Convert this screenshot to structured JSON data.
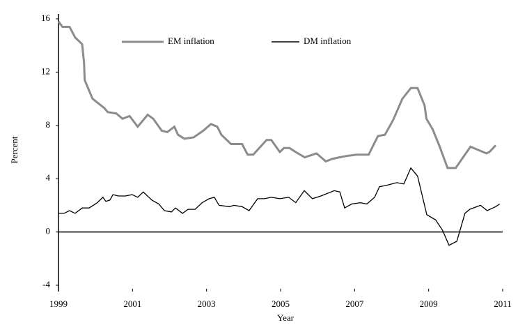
{
  "chart_data": {
    "type": "line",
    "x_label": "Year",
    "y_label": "Percent",
    "xlim": [
      1999,
      2011
    ],
    "xticks": [
      1999,
      2001,
      2003,
      2005,
      2007,
      2009,
      2011
    ],
    "ylim": [
      -4,
      16
    ],
    "yticks": [
      -4,
      0,
      4,
      8,
      12,
      16
    ],
    "legend": "top",
    "series": [
      {
        "name": "EM inflation",
        "color": "#8c8c8c",
        "x": [
          1999.0,
          1999.11,
          1999.3,
          1999.45,
          1999.64,
          1999.69,
          1999.71,
          1999.92,
          2000.24,
          2000.33,
          2000.56,
          2000.73,
          2000.92,
          2001.14,
          2001.41,
          2001.56,
          2001.79,
          2001.94,
          2002.13,
          2002.23,
          2002.4,
          2002.65,
          2002.91,
          2003.12,
          2003.29,
          2003.4,
          2003.66,
          2003.96,
          2004.11,
          2004.26,
          2004.62,
          2004.75,
          2004.98,
          2005.09,
          2005.24,
          2005.41,
          2005.65,
          2005.97,
          2006.22,
          2006.41,
          2006.59,
          2006.78,
          2007.05,
          2007.38,
          2007.63,
          2007.82,
          2008.04,
          2008.29,
          2008.52,
          2008.7,
          2008.89,
          2008.94,
          2009.11,
          2009.3,
          2009.51,
          2009.73,
          2010.13,
          2010.56,
          2010.64,
          2010.81
        ],
        "values": [
          15.8,
          15.4,
          15.4,
          14.6,
          14.1,
          12.7,
          11.4,
          10.0,
          9.3,
          9.0,
          8.9,
          8.5,
          8.7,
          7.9,
          8.8,
          8.5,
          7.6,
          7.5,
          7.9,
          7.3,
          7.0,
          7.1,
          7.6,
          8.1,
          7.9,
          7.3,
          6.6,
          6.6,
          5.8,
          5.8,
          6.9,
          6.9,
          6.0,
          6.3,
          6.3,
          6.0,
          5.6,
          5.9,
          5.3,
          5.5,
          5.6,
          5.7,
          5.8,
          5.8,
          7.2,
          7.3,
          8.4,
          10.0,
          10.8,
          10.8,
          9.5,
          8.5,
          7.7,
          6.4,
          4.8,
          4.8,
          6.4,
          5.9,
          6.0,
          6.5
        ]
      },
      {
        "name": "DM inflation",
        "color": "#000000",
        "x": [
          1999.0,
          1999.15,
          1999.3,
          1999.45,
          1999.64,
          1999.83,
          2000.05,
          2000.2,
          2000.28,
          2000.39,
          2000.47,
          2000.62,
          2000.81,
          2000.99,
          2001.14,
          2001.29,
          2001.52,
          2001.71,
          2001.86,
          2002.05,
          2002.16,
          2002.35,
          2002.5,
          2002.69,
          2002.88,
          2003.07,
          2003.21,
          2003.34,
          2003.62,
          2003.74,
          2003.96,
          2004.15,
          2004.38,
          2004.56,
          2004.75,
          2004.98,
          2005.22,
          2005.41,
          2005.64,
          2005.86,
          2006.09,
          2006.45,
          2006.6,
          2006.73,
          2006.92,
          2007.16,
          2007.33,
          2007.54,
          2007.67,
          2007.86,
          2008.14,
          2008.33,
          2008.52,
          2008.7,
          2008.95,
          2009.19,
          2009.38,
          2009.55,
          2009.76,
          2009.98,
          2010.11,
          2010.4,
          2010.58,
          2010.81,
          2010.92
        ],
        "values": [
          1.4,
          1.4,
          1.6,
          1.4,
          1.8,
          1.8,
          2.2,
          2.6,
          2.3,
          2.4,
          2.8,
          2.7,
          2.7,
          2.8,
          2.6,
          3.0,
          2.4,
          2.1,
          1.6,
          1.5,
          1.8,
          1.4,
          1.7,
          1.7,
          2.2,
          2.5,
          2.6,
          2.0,
          1.9,
          2.0,
          1.9,
          1.6,
          2.5,
          2.5,
          2.6,
          2.5,
          2.6,
          2.2,
          3.1,
          2.5,
          2.7,
          3.1,
          3.0,
          1.8,
          2.1,
          2.2,
          2.1,
          2.6,
          3.4,
          3.5,
          3.7,
          3.6,
          4.8,
          4.2,
          1.3,
          0.9,
          0.1,
          -1.0,
          -0.7,
          1.4,
          1.7,
          2.0,
          1.6,
          1.9,
          2.1
        ]
      }
    ]
  }
}
